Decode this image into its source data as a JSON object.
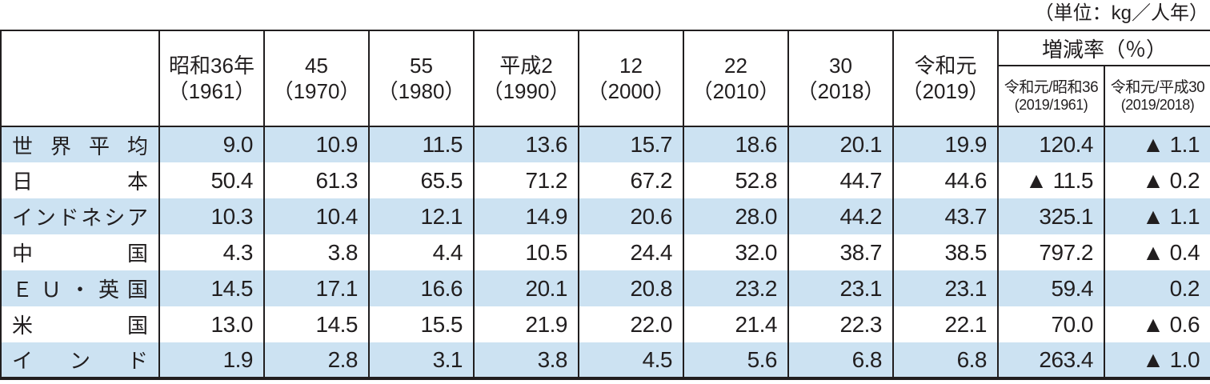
{
  "unit_label": "（単位：kg／人年）",
  "table": {
    "year_headers": [
      {
        "line1": "昭和36年",
        "line2": "（1961）"
      },
      {
        "line1": "45",
        "line2": "（1970）"
      },
      {
        "line1": "55",
        "line2": "（1980）"
      },
      {
        "line1": "平成2",
        "line2": "（1990）"
      },
      {
        "line1": "12",
        "line2": "（2000）"
      },
      {
        "line1": "22",
        "line2": "（2010）"
      },
      {
        "line1": "30",
        "line2": "（2018）"
      },
      {
        "line1": "令和元",
        "line2": "（2019）"
      }
    ],
    "change_group": {
      "label": "増減率（％）",
      "sub_headers": [
        {
          "line1": "令和元/昭和36",
          "line2": "(2019/1961)"
        },
        {
          "line1": "令和元/平成30",
          "line2": "(2019/2018)"
        }
      ]
    },
    "rows": [
      {
        "label": "世界平均",
        "values": [
          "9.0",
          "10.9",
          "11.5",
          "13.6",
          "15.7",
          "18.6",
          "20.1",
          "19.9"
        ],
        "changes": [
          "120.4",
          "▲ 1.1"
        ]
      },
      {
        "label": "日本",
        "values": [
          "50.4",
          "61.3",
          "65.5",
          "71.2",
          "67.2",
          "52.8",
          "44.7",
          "44.6"
        ],
        "changes": [
          "▲ 11.5",
          "▲ 0.2"
        ]
      },
      {
        "label": "インドネシア",
        "values": [
          "10.3",
          "10.4",
          "12.1",
          "14.9",
          "20.6",
          "28.0",
          "44.2",
          "43.7"
        ],
        "changes": [
          "325.1",
          "▲ 1.1"
        ]
      },
      {
        "label": "中国",
        "values": [
          "4.3",
          "3.8",
          "4.4",
          "10.5",
          "24.4",
          "32.0",
          "38.7",
          "38.5"
        ],
        "changes": [
          "797.2",
          "▲ 0.4"
        ]
      },
      {
        "label": "ＥＵ・英国",
        "values": [
          "14.5",
          "17.1",
          "16.6",
          "20.1",
          "20.8",
          "23.2",
          "23.1",
          "23.1"
        ],
        "changes": [
          "59.4",
          "0.2"
        ]
      },
      {
        "label": "米国",
        "values": [
          "13.0",
          "14.5",
          "15.5",
          "21.9",
          "22.0",
          "21.4",
          "22.3",
          "22.1"
        ],
        "changes": [
          "70.0",
          "▲ 0.6"
        ]
      },
      {
        "label": "インド",
        "values": [
          "1.9",
          "2.8",
          "3.1",
          "3.8",
          "4.5",
          "5.6",
          "6.8",
          "6.8"
        ],
        "changes": [
          "263.4",
          "▲ 1.0"
        ]
      }
    ],
    "colors": {
      "shaded_row": "#cce2f2",
      "border": "#211e1f",
      "negative_marker": "▲"
    }
  }
}
